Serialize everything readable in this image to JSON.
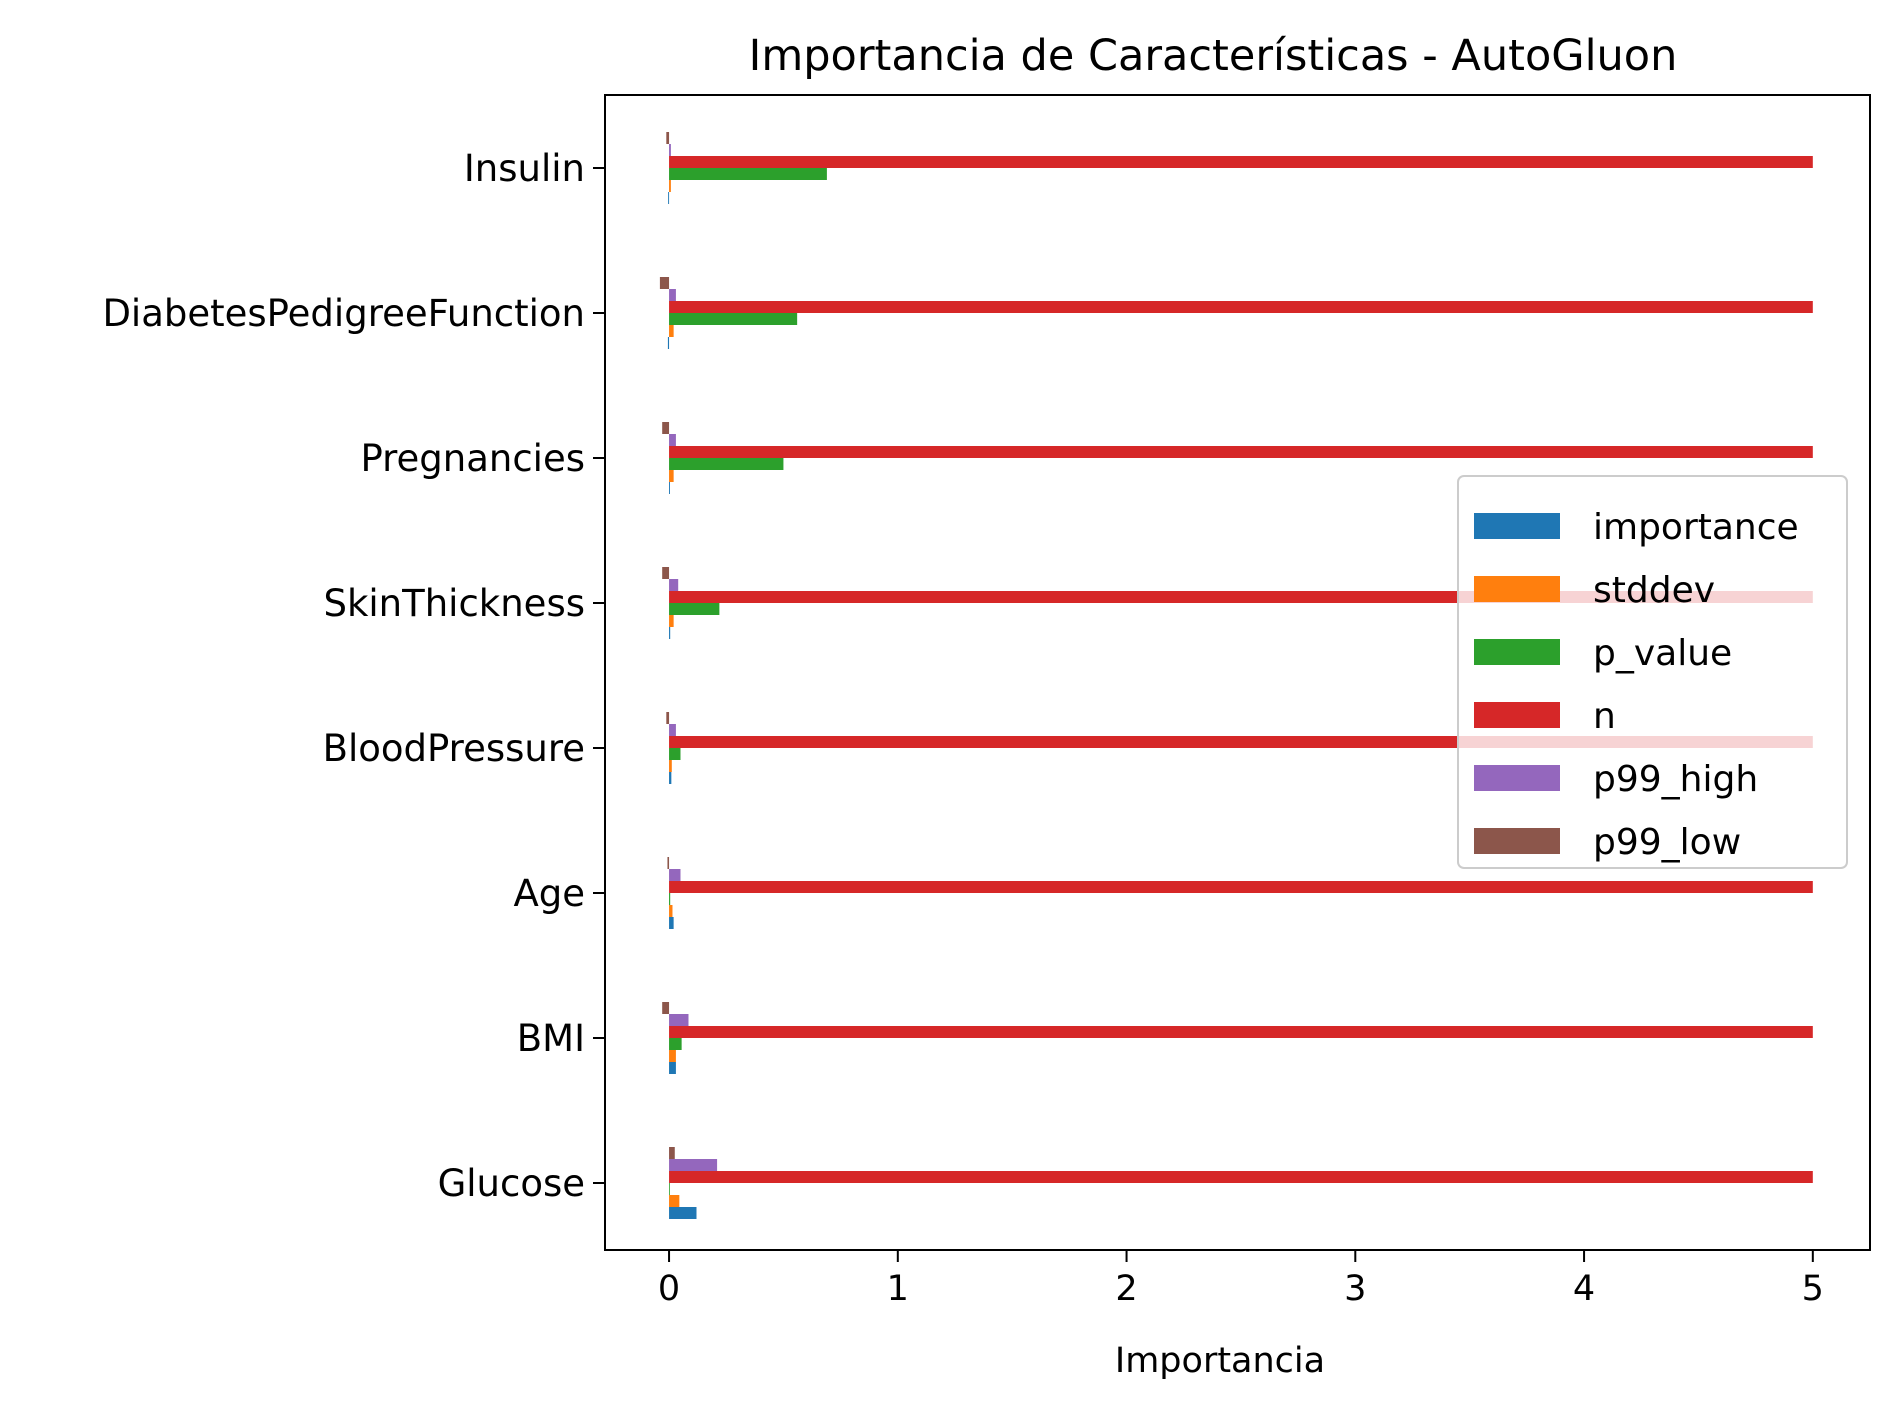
{
  "chart_data": {
    "type": "bar",
    "orientation": "horizontal",
    "title": "Importancia de Características - AutoGluon",
    "xlabel": "Importancia",
    "ylabel": "",
    "xlim": [
      -0.28,
      5.25
    ],
    "xticks": [
      0,
      1,
      2,
      3,
      4,
      5
    ],
    "grid": false,
    "legend_position": "center-right",
    "categories": [
      "Glucose",
      "BMI",
      "Age",
      "BloodPressure",
      "SkinThickness",
      "Pregnancies",
      "DiabetesPedigreeFunction",
      "Insulin"
    ],
    "series": [
      {
        "name": "importance",
        "color": "#1f77b4",
        "values": [
          0.12,
          0.03,
          0.02,
          0.01,
          0.005,
          0.004,
          -0.005,
          -0.004
        ]
      },
      {
        "name": "stddev",
        "color": "#ff7f0e",
        "values": [
          0.045,
          0.03,
          0.015,
          0.012,
          0.02,
          0.02,
          0.02,
          0.008
        ]
      },
      {
        "name": "p_value",
        "color": "#2ca02c",
        "values": [
          0.0,
          0.055,
          0.005,
          0.05,
          0.22,
          0.5,
          0.56,
          0.69
        ]
      },
      {
        "name": "n",
        "color": "#d62728",
        "values": [
          5,
          5,
          5,
          5,
          5,
          5,
          5,
          5
        ]
      },
      {
        "name": "p99_high",
        "color": "#9467bd",
        "values": [
          0.21,
          0.085,
          0.05,
          0.03,
          0.04,
          0.03,
          0.03,
          0.008
        ]
      },
      {
        "name": "p99_low",
        "color": "#8c564b",
        "values": [
          0.025,
          -0.03,
          -0.007,
          -0.012,
          -0.03,
          -0.03,
          -0.04,
          -0.012
        ]
      }
    ]
  }
}
